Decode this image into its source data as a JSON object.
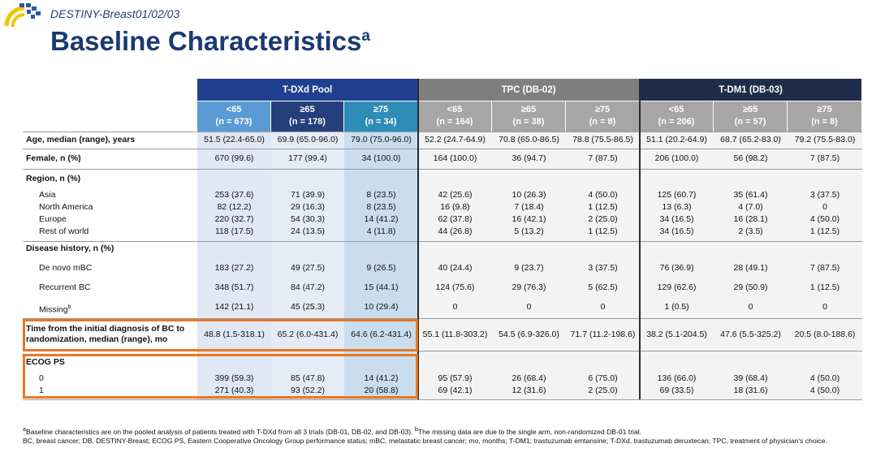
{
  "header": {
    "subtitle": "DESTINY-Breast01/02/03",
    "title": "Baseline Characteristics",
    "title_sup": "a"
  },
  "table": {
    "groups": [
      "T-DXd Pool",
      "TPC (DB-02)",
      "T-DM1 (DB-03)"
    ],
    "columns": [
      {
        "age": "<65",
        "n": "(n = 673)"
      },
      {
        "age": "≥65",
        "n": "(n = 178)"
      },
      {
        "age": "≥75",
        "n": "(n = 34)"
      },
      {
        "age": "<65",
        "n": "(n = 164)"
      },
      {
        "age": "≥65",
        "n": "(n = 38)"
      },
      {
        "age": "≥75",
        "n": "(n = 8)"
      },
      {
        "age": "<65",
        "n": "(n = 206)"
      },
      {
        "age": "≥65",
        "n": "(n = 57)"
      },
      {
        "age": "≥75",
        "n": "(n = 8)"
      }
    ],
    "sections": [
      {
        "label": "Age, median (range), years",
        "values": [
          "51.5 (22.4-65.0)",
          "69.9 (65.0-96.0)",
          "79.0 (75.0-96.0)",
          "52.2 (24.7-64.9)",
          "70.8 (65.0-86.5)",
          "78.8 (75.5-86.5)",
          "51.1 (20.2-64.9)",
          "68.7 (65.2-83.0)",
          "79.2 (75.5-83.0)"
        ]
      },
      {
        "label": "Female, n (%)",
        "values": [
          "670 (99.6)",
          "177 (99.4)",
          "34 (100.0)",
          "164 (100.0)",
          "36 (94.7)",
          "7 (87.5)",
          "206 (100.0)",
          "56 (98.2)",
          "7 (87.5)"
        ]
      },
      {
        "label": "Region, n (%)",
        "items": [
          {
            "label": "Asia",
            "values": [
              "253 (37.6)",
              "71 (39.9)",
              "8 (23.5)",
              "42 (25.6)",
              "10 (26.3)",
              "4 (50.0)",
              "125 (60.7)",
              "35 (61.4)",
              "3 (37.5)"
            ]
          },
          {
            "label": "North America",
            "values": [
              "82 (12.2)",
              "29 (16.3)",
              "8 (23.5)",
              "16 (9.8)",
              "7 (18.4)",
              "1 (12.5)",
              "13 (6.3)",
              "4 (7.0)",
              "0"
            ]
          },
          {
            "label": "Europe",
            "values": [
              "220 (32.7)",
              "54 (30.3)",
              "14 (41.2)",
              "62 (37.8)",
              "16 (42.1)",
              "2 (25.0)",
              "34 (16.5)",
              "16 (28.1)",
              "4 (50.0)"
            ]
          },
          {
            "label": "Rest of world",
            "values": [
              "118 (17.5)",
              "24 (13.5)",
              "4 (11.8)",
              "44 (26.8)",
              "5 (13.2)",
              "1 (12.5)",
              "34 (16.5)",
              "2 (3.5)",
              "1 (12.5)"
            ]
          }
        ]
      },
      {
        "label": "Disease history, n (%)",
        "items": [
          {
            "label": "De novo mBC",
            "values": [
              "183 (27.2)",
              "49 (27.5)",
              "9 (26.5)",
              "40 (24.4)",
              "9 (23.7)",
              "3 (37.5)",
              "76 (36.9)",
              "28 (49.1)",
              "7 (87.5)"
            ]
          },
          {
            "label": "Recurrent BC",
            "values": [
              "348 (51.7)",
              "84 (47.2)",
              "15 (44.1)",
              "124 (75.6)",
              "29 (76.3)",
              "5 (62.5)",
              "129 (62.6)",
              "29 (50.9)",
              "1 (12.5)"
            ]
          },
          {
            "label": "Missing",
            "sup": "b",
            "values": [
              "142 (21.1)",
              "45 (25.3)",
              "10 (29.4)",
              "0",
              "0",
              "0",
              "1 (0.5)",
              "0",
              "0"
            ]
          }
        ]
      },
      {
        "label": "Time from the initial diagnosis of BC to randomization, median (range), mo",
        "values": [
          "48.8 (1.5-318.1)",
          "65.2 (6.0-431.4)",
          "64.6 (6.2-431.4)",
          "55.1 (11.8-303.2)",
          "54.5 (6.9-326.0)",
          "71.7 (11.2-198.6)",
          "38.2 (5.1-204.5)",
          "47.6 (5.5-325.2)",
          "20.5 (8.0-188.6)"
        ]
      },
      {
        "label": "ECOG PS",
        "items": [
          {
            "label": "0",
            "values": [
              "399 (59.3)",
              "85 (47.8)",
              "14 (41.2)",
              "95 (57.9)",
              "26 (68.4)",
              "6 (75.0)",
              "136 (66.0)",
              "39 (68.4)",
              "4 (50.0)"
            ]
          },
          {
            "label": "1",
            "values": [
              "271 (40.3)",
              "93 (52.2)",
              "20 (58.8)",
              "69 (42.1)",
              "12 (31.6)",
              "2 (25.0)",
              "69 (33.5)",
              "18 (31.6)",
              "4 (50.0)"
            ]
          }
        ]
      }
    ]
  },
  "footnotes": {
    "notes": [
      {
        "sup": "a",
        "text": "Baseline characteristics are on the pooled analysis of patients treated with T-DXd from all 3 trials (DB-01, DB-02, and DB-03)."
      },
      {
        "sup": "b",
        "text": "The missing data are due to the single arm, non-randomized DB-01 trial."
      }
    ],
    "abbreviations": "BC, breast cancer; DB, DESTINY-Breast; ECOG PS, Eastern Cooperative Oncology Group performance status; mBC, metastatic breast cancer; mo, months; T-DM1; trastuzumab emtansine; T-DXd, trastuzumab deruxtecan; TPC, treatment of physician's choice."
  }
}
